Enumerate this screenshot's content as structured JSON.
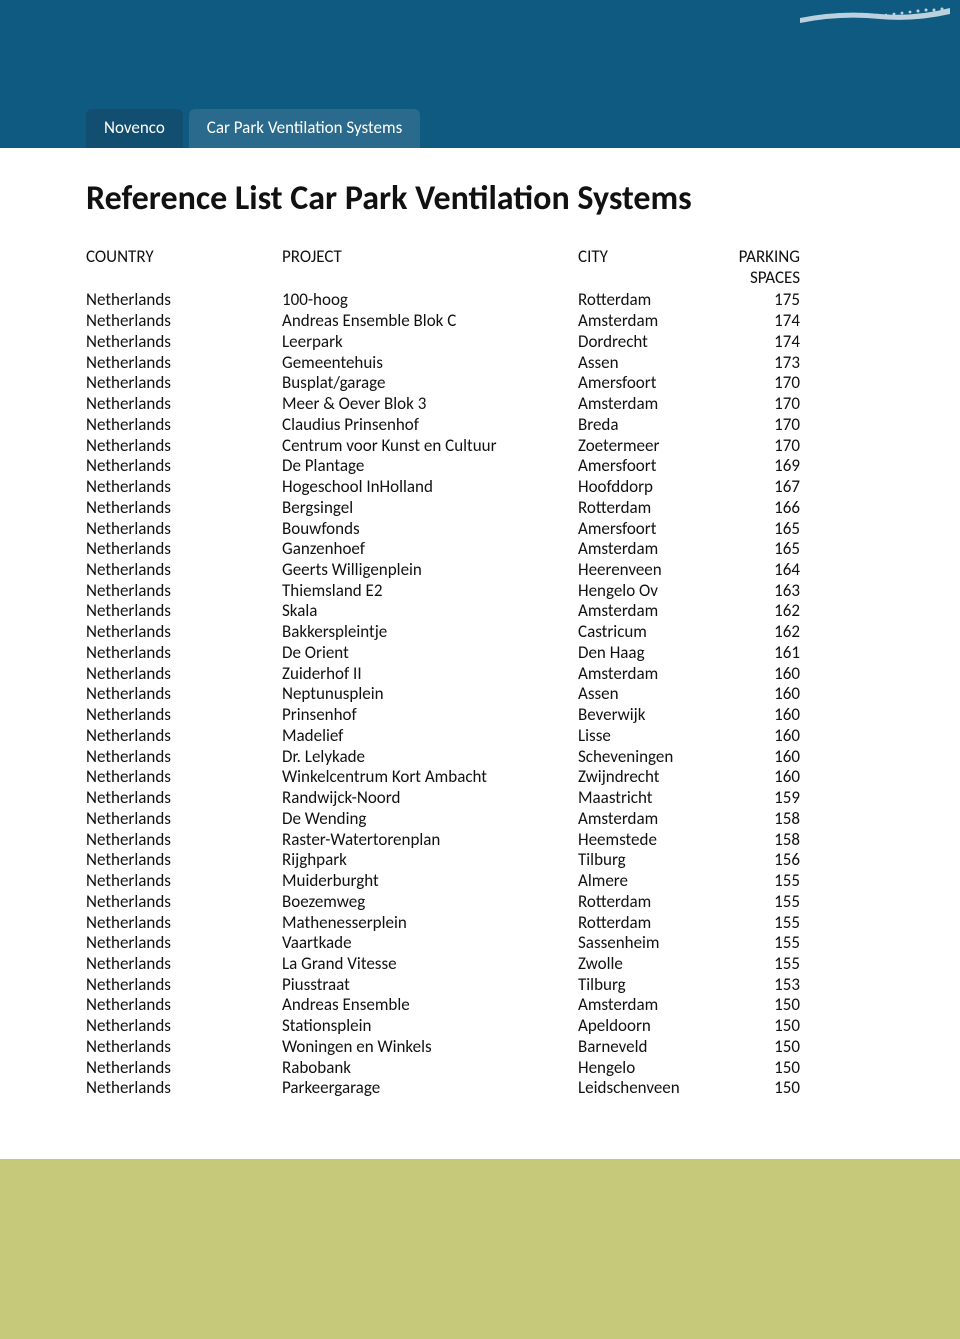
{
  "header": {
    "banner_color": "#0f5a80",
    "tabs": [
      {
        "label": "Novenco",
        "bg": "#124e6f"
      },
      {
        "label": "Car Park Ventilation Systems",
        "bg": "#2a6a8c"
      }
    ]
  },
  "title": "Reference List Car Park Ventilation Systems",
  "columns": {
    "country": "COUNTRY",
    "project": "PROJECT",
    "city": "CITY",
    "spaces": "PARKING\nSPACES"
  },
  "rows": [
    {
      "country": "Netherlands",
      "project": "100-hoog",
      "city": "Rotterdam",
      "spaces": 175
    },
    {
      "country": "Netherlands",
      "project": "Andreas Ensemble Blok C",
      "city": "Amsterdam",
      "spaces": 174
    },
    {
      "country": "Netherlands",
      "project": "Leerpark",
      "city": "Dordrecht",
      "spaces": 174
    },
    {
      "country": "Netherlands",
      "project": "Gemeentehuis",
      "city": "Assen",
      "spaces": 173
    },
    {
      "country": "Netherlands",
      "project": "Busplat/garage",
      "city": "Amersfoort",
      "spaces": 170
    },
    {
      "country": "Netherlands",
      "project": "Meer & Oever Blok 3",
      "city": "Amsterdam",
      "spaces": 170
    },
    {
      "country": "Netherlands",
      "project": "Claudius Prinsenhof",
      "city": "Breda",
      "spaces": 170
    },
    {
      "country": "Netherlands",
      "project": "Centrum voor Kunst en Cultuur",
      "city": "Zoetermeer",
      "spaces": 170
    },
    {
      "country": "Netherlands",
      "project": "De Plantage",
      "city": "Amersfoort",
      "spaces": 169
    },
    {
      "country": "Netherlands",
      "project": "Hogeschool InHolland",
      "city": "Hoofddorp",
      "spaces": 167
    },
    {
      "country": "Netherlands",
      "project": "Bergsingel",
      "city": "Rotterdam",
      "spaces": 166
    },
    {
      "country": "Netherlands",
      "project": "Bouwfonds",
      "city": "Amersfoort",
      "spaces": 165
    },
    {
      "country": "Netherlands",
      "project": "Ganzenhoef",
      "city": "Amsterdam",
      "spaces": 165
    },
    {
      "country": "Netherlands",
      "project": "Geerts Willigenplein",
      "city": "Heerenveen",
      "spaces": 164
    },
    {
      "country": "Netherlands",
      "project": "Thiemsland E2",
      "city": "Hengelo Ov",
      "spaces": 163
    },
    {
      "country": "Netherlands",
      "project": "Skala",
      "city": "Amsterdam",
      "spaces": 162
    },
    {
      "country": "Netherlands",
      "project": "Bakkerspleintje",
      "city": "Castricum",
      "spaces": 162
    },
    {
      "country": "Netherlands",
      "project": "De Orient",
      "city": "Den Haag",
      "spaces": 161
    },
    {
      "country": "Netherlands",
      "project": "Zuiderhof II",
      "city": "Amsterdam",
      "spaces": 160
    },
    {
      "country": "Netherlands",
      "project": "Neptunusplein",
      "city": "Assen",
      "spaces": 160
    },
    {
      "country": "Netherlands",
      "project": "Prinsenhof",
      "city": "Beverwijk",
      "spaces": 160
    },
    {
      "country": "Netherlands",
      "project": "Madelief",
      "city": "Lisse",
      "spaces": 160
    },
    {
      "country": "Netherlands",
      "project": "Dr. Lelykade",
      "city": "Scheveningen",
      "spaces": 160
    },
    {
      "country": "Netherlands",
      "project": "Winkelcentrum Kort Ambacht",
      "city": "Zwijndrecht",
      "spaces": 160
    },
    {
      "country": "Netherlands",
      "project": "Randwijck-Noord",
      "city": "Maastricht",
      "spaces": 159
    },
    {
      "country": "Netherlands",
      "project": "De Wending",
      "city": "Amsterdam",
      "spaces": 158
    },
    {
      "country": "Netherlands",
      "project": "Raster-Watertorenplan",
      "city": "Heemstede",
      "spaces": 158
    },
    {
      "country": "Netherlands",
      "project": "Rijghpark",
      "city": "Tilburg",
      "spaces": 156
    },
    {
      "country": "Netherlands",
      "project": "Muiderburght",
      "city": "Almere",
      "spaces": 155
    },
    {
      "country": "Netherlands",
      "project": "Boezemweg",
      "city": "Rotterdam",
      "spaces": 155
    },
    {
      "country": "Netherlands",
      "project": "Mathenesserplein",
      "city": "Rotterdam",
      "spaces": 155
    },
    {
      "country": "Netherlands",
      "project": "Vaartkade",
      "city": "Sassenheim",
      "spaces": 155
    },
    {
      "country": "Netherlands",
      "project": "La Grand Vitesse",
      "city": "Zwolle",
      "spaces": 155
    },
    {
      "country": "Netherlands",
      "project": "Piusstraat",
      "city": "Tilburg",
      "spaces": 153
    },
    {
      "country": "Netherlands",
      "project": "Andreas Ensemble",
      "city": "Amsterdam",
      "spaces": 150
    },
    {
      "country": "Netherlands",
      "project": "Stationsplein",
      "city": "Apeldoorn",
      "spaces": 150
    },
    {
      "country": "Netherlands",
      "project": "Woningen en Winkels",
      "city": "Barneveld",
      "spaces": 150
    },
    {
      "country": "Netherlands",
      "project": "Rabobank",
      "city": "Hengelo",
      "spaces": 150
    },
    {
      "country": "Netherlands",
      "project": "Parkeergarage",
      "city": "Leidschenveen",
      "spaces": 150
    }
  ],
  "footer_color": "#c6c97a"
}
